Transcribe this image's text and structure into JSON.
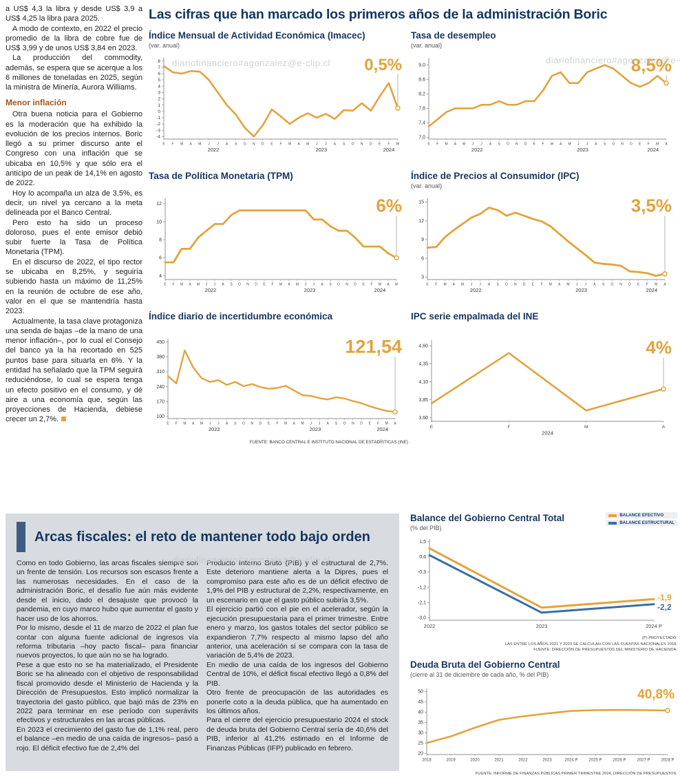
{
  "watermark": {
    "text": "diariofinanciero#agonzalez@e-clip.cl"
  },
  "colors": {
    "accent_orange": "#E2A33C",
    "navy": "#14365F",
    "structural_blue": "#3A6EA5",
    "panel_gray": "#D8DCE1",
    "subhead_orange": "#A3551B"
  },
  "main_title": "Las cifras que han marcado los primeros años de la administración Boric",
  "article": {
    "top": [
      "a US$ 4,3 la libra y desde US$ 3,9 a US$ 4,25 la libra para 2025.",
      "A modo de contexto, en 2022 el precio promedio de la libra de cobre fue de US$ 3,99 y de unos US$ 3,84 en 2023.",
      "La producción del commodity, además, se espera que se acerque a los 6 millones de toneladas en 2025, según la ministra de Minería, Aurora Williams."
    ],
    "heading": "Menor inflación",
    "bottom": [
      "Otra buena noticia para el Gobierno es la moderación que ha exhibido la evolución de los precios internos. Boric llegó a su primer discurso ante el Congreso con una inflación que se ubicaba en 10,5% y que sólo era el anticipo de un peak de 14,1% en agosto de 2022.",
      "Hoy lo acompaña un alza de 3,5%, es decir, un nivel ya cercano a la meta delineada por el Banco Central.",
      "Pero esto ha sido un proceso doloroso, pues el ente emisor debió subir fuerte la Tasa de Política Monetaria (TPM).",
      "En el discurso de 2022, el tipo rector se ubicaba en 8,25%, y seguiría subiendo hasta un máximo de 11,25% en la reunión de octubre de ese año, valor en el que se mantendría hasta 2023.",
      "Actualmente, la tasa clave protagoniza una senda de bajas –de la mano de una menor inflación–, por lo cual el Consejo del banco ya la ha recortado en 525 puntos base para situarla en 6%. Y la entidad ha señalado que la TPM seguirá reduciéndose, lo cual se espera tenga un efecto positivo en el consumo, y dé aire a una economía que, según las proyecciones de Hacienda, debiese crecer un 2,7%."
    ]
  },
  "fiscal": {
    "title": "Arcas fiscales: el reto de mantener todo bajo orden",
    "col1": [
      "Como en todo Gobierno, las arcas fiscales siempre son un frente de tensión. Los recursos son escasos frente a las numerosas necesidades. En el caso de la administración Boric, el desafío fue aún más evidente desde el inicio, dado el desajuste que provocó la pandemia, en cuyo marco hubo que aumentar el gasto y hacer uso de los ahorros.",
      "Por lo mismo, desde el 11 de marzo de 2022 el plan fue contar con alguna fuente adicional de ingresos vía reforma tributaria –hoy pacto fiscal– para financiar nuevos proyectos, lo que aún no se ha logrado.",
      "Pese a que esto no se ha materializado, el Presidente Boric se ha alineado con el objetivo de responsabilidad fiscal promovido desde el Ministerio de Hacienda y la Dirección de Presupuestos. Esto implicó normalizar la trayectoria del gasto público, que bajó más de 23% en 2022 para terminar en ese período con superávits efectivos y estructurales en las arcas públicas.",
      "En 2023 el crecimiento del gasto fue de 1,1% real, pero el balance –en medio de una caída de ingresos– pasó a rojo. El déficit efectivo fue de 2,4% del"
    ],
    "col2": [
      "Producto Interno Bruto (PIB) y el estructural de 2,7%. Este deterioro mantiene alerta a la Dipres, pues el compromiso para este año es de un déficit efectivo de 1,9% del PIB y estructural de 2,2%, respectivamente, en un escenario en que el gasto público subiría 3,5%.",
      "El ejercicio partió con el pie en el acelerador, según la ejecución presupuestaria para el primer trimestre. Entre enero y marzo, los gastos totales del sector público se expandieron 7,7% respecto al mismo lapso del año anterior, una aceleración si se compara con la tasa de variación de 5,4% de 2023.",
      "En medio de una caída de los ingresos del Gobierno Central de 10%, el déficit fiscal efectivo llegó a 0,8% del PIB.",
      "Otro frente de preocupación de las autoridades es ponerle coto a la deuda pública, que ha aumentado en los últimos años.",
      "Para el cierre del ejercicio presupuestario 2024 el stock de deuda bruta del Gobierno Central sería de 40,6% del PIB, inferior al 41,2% estimado en el Informe de Finanzas Públicas (IFP) publicado en febrero."
    ]
  },
  "chart_data": [
    {
      "id": "imacec",
      "type": "line",
      "title": "Índice Mensual de Actividad Económica (Imacec)",
      "subtitle": "(var. anual)",
      "callout": "0,5%",
      "ylim": [
        -4.4,
        8.5
      ],
      "yticks": [
        {
          "label": "8",
          "v": 8
        },
        {
          "label": "7",
          "v": 7
        },
        {
          "label": "6",
          "v": 6
        },
        {
          "label": "5",
          "v": 5
        },
        {
          "label": "4",
          "v": 4
        },
        {
          "label": "3",
          "v": 3
        },
        {
          "label": "2",
          "v": 2
        },
        {
          "label": "1",
          "v": 1
        },
        {
          "label": "0",
          "v": 0
        },
        {
          "label": "-1",
          "v": -1
        },
        {
          "label": "-2",
          "v": -2
        },
        {
          "label": "-3",
          "v": -3
        },
        {
          "label": "-4",
          "v": -4
        }
      ],
      "x_labels": [
        "E",
        "F",
        "M",
        "A",
        "M",
        "J",
        "J",
        "A",
        "S",
        "O",
        "N",
        "D",
        "E",
        "F",
        "M",
        "A",
        "M",
        "J",
        "J",
        "A",
        "S",
        "O",
        "N",
        "D",
        "E",
        "F",
        "M"
      ],
      "year_groups": [
        {
          "label": "2022",
          "start": 0,
          "end": 11
        },
        {
          "label": "2023",
          "start": 12,
          "end": 23
        },
        {
          "label": "2024",
          "start": 24,
          "end": 26
        }
      ],
      "guide_line": true,
      "series": [
        {
          "name": "Imacec var. anual",
          "color": "#E2A33C",
          "end_dot": true,
          "values": [
            7.2,
            6.2,
            6.0,
            6.4,
            6.3,
            5.0,
            3.0,
            1.0,
            -0.5,
            -2.6,
            -4.0,
            -2.2,
            0.3,
            -0.8,
            -2.0,
            -1.0,
            -0.3,
            -1.0,
            -0.4,
            -1.2,
            0.2,
            0.1,
            1.3,
            0.1,
            2.4,
            4.5,
            0.5
          ]
        }
      ]
    },
    {
      "id": "desempleo",
      "type": "line",
      "title": "Tasa de desempleo",
      "subtitle": "(var. anual)",
      "callout": "8,5%",
      "ylim": [
        6.95,
        9.2
      ],
      "yticks": [
        {
          "label": "9,0",
          "v": 9.0
        },
        {
          "label": "8,6",
          "v": 8.6
        },
        {
          "label": "8,2",
          "v": 8.2
        },
        {
          "label": "7,8",
          "v": 7.8
        },
        {
          "label": "7,4",
          "v": 7.4
        },
        {
          "label": "7,0",
          "v": 7.0
        }
      ],
      "x_labels": [
        "E",
        "F",
        "M",
        "A",
        "M",
        "J",
        "J",
        "A",
        "S",
        "O",
        "N",
        "D",
        "E",
        "F",
        "M",
        "A",
        "M",
        "J",
        "J",
        "A",
        "S",
        "O",
        "N",
        "D",
        "E",
        "F",
        "M",
        "A"
      ],
      "year_groups": [
        {
          "label": "2022",
          "start": 0,
          "end": 11
        },
        {
          "label": "2023",
          "start": 12,
          "end": 23
        },
        {
          "label": "2024",
          "start": 24,
          "end": 27
        }
      ],
      "guide_line": true,
      "series": [
        {
          "name": "Tasa de desempleo",
          "color": "#E2A33C",
          "end_dot": true,
          "values": [
            7.3,
            7.5,
            7.7,
            7.8,
            7.8,
            7.8,
            7.9,
            7.9,
            8.0,
            7.9,
            7.9,
            8.0,
            8.0,
            8.3,
            8.7,
            8.8,
            8.5,
            8.5,
            8.8,
            8.9,
            9.0,
            8.9,
            8.7,
            8.5,
            8.4,
            8.5,
            8.7,
            8.5
          ]
        }
      ]
    },
    {
      "id": "tpm",
      "type": "line",
      "title": "Tasa de Política Monetaria (TPM)",
      "subtitle": "",
      "callout": "6%",
      "ylim": [
        3.6,
        12.6
      ],
      "yticks": [
        {
          "label": "12",
          "v": 12
        },
        {
          "label": "10",
          "v": 10
        },
        {
          "label": "8",
          "v": 8
        },
        {
          "label": "6",
          "v": 6
        },
        {
          "label": "4",
          "v": 4
        }
      ],
      "x_labels": [
        "E",
        "F",
        "M",
        "A",
        "M",
        "J",
        "J",
        "A",
        "S",
        "O",
        "N",
        "D",
        "E",
        "F",
        "M",
        "A",
        "M",
        "J",
        "J",
        "A",
        "S",
        "O",
        "N",
        "D",
        "E",
        "F",
        "M",
        "A",
        "M"
      ],
      "year_groups": [
        {
          "label": "2022",
          "start": 0,
          "end": 11
        },
        {
          "label": "2023",
          "start": 12,
          "end": 23
        },
        {
          "label": "2024",
          "start": 24,
          "end": 28
        }
      ],
      "guide_line": true,
      "series": [
        {
          "name": "TPM",
          "color": "#E2A33C",
          "end_dot": true,
          "values": [
            5.5,
            5.5,
            7.0,
            7.0,
            8.25,
            9.0,
            9.75,
            9.75,
            10.75,
            11.25,
            11.25,
            11.25,
            11.25,
            11.25,
            11.25,
            11.25,
            11.25,
            11.25,
            10.25,
            10.25,
            9.5,
            9.0,
            9.0,
            8.25,
            7.25,
            7.25,
            7.25,
            6.5,
            6.0
          ]
        }
      ]
    },
    {
      "id": "ipc",
      "type": "line",
      "title": "Índice de Precios al Consumidor (IPC)",
      "subtitle": "(var. anual)",
      "callout": "3,5%",
      "ylim": [
        2.6,
        15.6
      ],
      "yticks": [
        {
          "label": "15",
          "v": 15
        },
        {
          "label": "12",
          "v": 12
        },
        {
          "label": "9",
          "v": 9
        },
        {
          "label": "6",
          "v": 6
        },
        {
          "label": "3",
          "v": 3
        }
      ],
      "x_labels": [
        "E",
        "F",
        "M",
        "A",
        "M",
        "J",
        "J",
        "A",
        "S",
        "O",
        "N",
        "D",
        "E",
        "F",
        "M",
        "A",
        "M",
        "J",
        "J",
        "A",
        "S",
        "O",
        "N",
        "D",
        "E",
        "F",
        "M",
        "A"
      ],
      "year_groups": [
        {
          "label": "2022",
          "start": 0,
          "end": 11
        },
        {
          "label": "2023",
          "start": 12,
          "end": 23
        },
        {
          "label": "2024",
          "start": 24,
          "end": 27
        }
      ],
      "guide_line": true,
      "series": [
        {
          "name": "IPC var. anual",
          "color": "#E2A33C",
          "end_dot": true,
          "values": [
            7.7,
            7.8,
            9.4,
            10.5,
            11.5,
            12.5,
            13.1,
            14.1,
            13.7,
            12.8,
            13.3,
            12.8,
            12.3,
            11.9,
            11.1,
            9.9,
            8.7,
            7.6,
            6.5,
            5.3,
            5.1,
            5.0,
            4.8,
            3.9,
            3.8,
            3.6,
            3.2,
            3.5
          ]
        }
      ]
    },
    {
      "id": "incertidumbre",
      "type": "line",
      "title": "Índice diario de incertidumbre económica",
      "subtitle": "",
      "callout": "121,54",
      "ylim": [
        90,
        465
      ],
      "yticks": [
        {
          "label": "450",
          "v": 450
        },
        {
          "label": "380",
          "v": 380
        },
        {
          "label": "310",
          "v": 310
        },
        {
          "label": "240",
          "v": 240
        },
        {
          "label": "170",
          "v": 170
        },
        {
          "label": "100",
          "v": 100
        }
      ],
      "x_labels": [
        "E",
        "F",
        "M",
        "A",
        "M",
        "J",
        "J",
        "A",
        "S",
        "O",
        "N",
        "D",
        "E",
        "F",
        "M",
        "A",
        "M",
        "J",
        "J",
        "A",
        "S",
        "O",
        "N",
        "D",
        "E",
        "F",
        "M",
        "A"
      ],
      "year_groups": [
        {
          "label": "2022",
          "start": 0,
          "end": 11
        },
        {
          "label": "2023",
          "start": 12,
          "end": 23
        },
        {
          "label": "2024",
          "start": 24,
          "end": 27
        }
      ],
      "guide_line": true,
      "source": "FUENTE: BANCO CENTRAL E INSTITUTO NACIONAL DE ESTADÍSTICAS (INE)",
      "series": [
        {
          "name": "Incertidumbre económica",
          "color": "#E2A33C",
          "end_dot": true,
          "values": [
            290,
            255,
            410,
            330,
            280,
            262,
            270,
            248,
            262,
            242,
            252,
            238,
            230,
            234,
            244,
            222,
            200,
            196,
            186,
            180,
            190,
            184,
            172,
            162,
            148,
            136,
            126,
            121.54
          ]
        }
      ]
    },
    {
      "id": "ipc_empalmada",
      "type": "line",
      "title": "IPC serie empalmada del INE",
      "subtitle": "",
      "callout": "4%",
      "ylim": [
        3.55,
        4.68
      ],
      "yticks": [
        {
          "label": "4,60",
          "v": 4.6
        },
        {
          "label": "4,35",
          "v": 4.35
        },
        {
          "label": "4,10",
          "v": 4.1
        },
        {
          "label": "3,85",
          "v": 3.85
        },
        {
          "label": "3,60",
          "v": 3.6
        }
      ],
      "x_labels": [
        "E",
        "F",
        "M",
        "A"
      ],
      "year_groups": [
        {
          "label": "2024",
          "start": 0,
          "end": 3
        }
      ],
      "guide_line": true,
      "series": [
        {
          "name": "IPC serie empalmada",
          "color": "#E2A33C",
          "end_dot": true,
          "values": [
            3.8,
            4.5,
            3.7,
            4.0
          ]
        }
      ]
    },
    {
      "id": "balance_gobierno",
      "type": "line",
      "title": "Balance del Gobierno Central Total",
      "subtitle": "(% del PIB)",
      "callout": null,
      "ylim": [
        -3.15,
        1.65
      ],
      "yticks": [
        {
          "label": "1,5",
          "v": 1.5
        },
        {
          "label": "0,6",
          "v": 0.6
        },
        {
          "label": "-0,3",
          "v": -0.3
        },
        {
          "label": "-1,2",
          "v": -1.2
        },
        {
          "label": "-2,1",
          "v": -2.1
        },
        {
          "label": "-3,0",
          "v": -3.0
        }
      ],
      "x_labels": [
        "2022",
        "2023",
        "2024 P"
      ],
      "year_groups": [],
      "guide_line": false,
      "legend": [
        {
          "label": "BALANCE EFECTIVO",
          "color": "#E2A33C"
        },
        {
          "label": "BALANCE ESTRUCTURAL",
          "color": "#3A6EA5"
        }
      ],
      "footnotes": [
        "(P) PROYECTADO.",
        "LAS ENTRE LOS AÑOS 2021 Y 2023 SE CALCULAN CON LAS CUENTAS NACIONALES 2018.",
        "FUENTE: DIRECCIÓN DE PRESUPUESTOS DEL MINISTERIO DE HACIENDA."
      ],
      "series": [
        {
          "name": "Balance efectivo",
          "color": "#E2A33C",
          "end_dot": false,
          "end_label": "-1,9",
          "label_dy": -2,
          "values": [
            1.1,
            -2.4,
            -1.9
          ]
        },
        {
          "name": "Balance estructural",
          "color": "#3A6EA5",
          "end_dot": false,
          "end_label": "-2,2",
          "label_dy": 5,
          "values": [
            0.7,
            -2.7,
            -2.2
          ]
        }
      ]
    },
    {
      "id": "deuda_bruta",
      "type": "line",
      "title": "Deuda Bruta del Gobierno Central",
      "subtitle": "(cierre al 31 de diciembre de cada año, % del PIB)",
      "callout": "40,8%",
      "ylim": [
        19.5,
        51.5
      ],
      "yticks": [
        {
          "label": "50",
          "v": 50
        },
        {
          "label": "45",
          "v": 45
        },
        {
          "label": "40",
          "v": 40
        },
        {
          "label": "35",
          "v": 35
        },
        {
          "label": "30",
          "v": 30
        },
        {
          "label": "25",
          "v": 25
        },
        {
          "label": "20",
          "v": 20
        }
      ],
      "x_labels": [
        "2018",
        "2019",
        "2020",
        "2021",
        "2022",
        "2023",
        "2024 P",
        "2025 P",
        "2026 P",
        "2027 P",
        "2028 P"
      ],
      "year_groups": [],
      "guide_line": false,
      "footnotes": [
        "FUENTE: INFORME DE FINANZAS PÚBLICAS PRIMER TRIMESTRE 2024, DIRECCIÓN DE PRESUPUESTOS."
      ],
      "series": [
        {
          "name": "Deuda bruta",
          "color": "#E2A33C",
          "end_dot": true,
          "values": [
            25.1,
            28.3,
            32.5,
            36.3,
            38.0,
            39.4,
            40.6,
            41.0,
            41.1,
            41.0,
            40.8
          ]
        }
      ]
    }
  ]
}
